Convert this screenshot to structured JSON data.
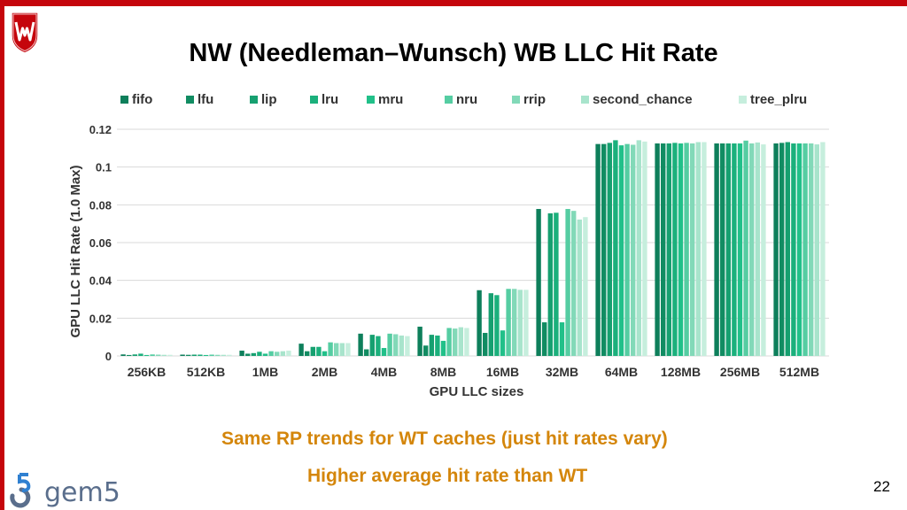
{
  "slide": {
    "title": "NW (Needleman–Wunsch) WB LLC Hit Rate",
    "note1": "Same RP trends for WT caches (just hit rates vary)",
    "note2": "Higher average hit rate than WT",
    "page_number": "22",
    "logo_text": "gem5"
  },
  "colors": {
    "accent": "#c5050c",
    "note": "#d4860b"
  },
  "chart_data": {
    "type": "bar",
    "title": "NW (Needleman–Wunsch) WB LLC Hit Rate",
    "xlabel": "GPU LLC sizes",
    "ylabel": "GPU LLC Hit Rate (1.0 Max)",
    "ylim": [
      0,
      0.12
    ],
    "yticks": [
      "0",
      "0.02",
      "0.04",
      "0.06",
      "0.08",
      "0.1",
      "0.12"
    ],
    "legend_position": "top",
    "grid": true,
    "categories": [
      "256KB",
      "512KB",
      "1MB",
      "2MB",
      "4MB",
      "8MB",
      "16MB",
      "32MB",
      "64MB",
      "128MB",
      "256MB",
      "512MB"
    ],
    "series": [
      {
        "name": "fifo",
        "color": "#0e7f5b",
        "values": [
          0.0008,
          0.0007,
          0.0028,
          0.0065,
          0.0118,
          0.0155,
          0.0348,
          0.0778,
          0.1122,
          0.1125,
          0.1125,
          0.1125
        ]
      },
      {
        "name": "lfu",
        "color": "#118c62",
        "values": [
          0.0005,
          0.0006,
          0.0012,
          0.0025,
          0.0035,
          0.0055,
          0.0122,
          0.0178,
          0.1122,
          0.1125,
          0.1125,
          0.1128
        ]
      },
      {
        "name": "lip",
        "color": "#16a070",
        "values": [
          0.0008,
          0.0007,
          0.0015,
          0.0048,
          0.0112,
          0.0112,
          0.0332,
          0.0755,
          0.1128,
          0.1125,
          0.1125,
          0.1132
        ]
      },
      {
        "name": "lru",
        "color": "#1bb07c",
        "values": [
          0.0012,
          0.0007,
          0.0022,
          0.0048,
          0.0105,
          0.0108,
          0.0322,
          0.0758,
          0.1142,
          0.1128,
          0.1125,
          0.1125
        ]
      },
      {
        "name": "mru",
        "color": "#21c089",
        "values": [
          0.0005,
          0.0005,
          0.0012,
          0.0025,
          0.0042,
          0.008,
          0.0135,
          0.0178,
          0.1115,
          0.1125,
          0.1125,
          0.1125
        ]
      },
      {
        "name": "nru",
        "color": "#55cda2",
        "values": [
          0.0008,
          0.0007,
          0.0025,
          0.0072,
          0.0118,
          0.0148,
          0.0355,
          0.0778,
          0.1122,
          0.1128,
          0.114,
          0.1125
        ]
      },
      {
        "name": "rrip",
        "color": "#82d9b8",
        "values": [
          0.0007,
          0.0006,
          0.0022,
          0.0068,
          0.0115,
          0.0145,
          0.0355,
          0.0768,
          0.1118,
          0.1125,
          0.1125,
          0.1125
        ]
      },
      {
        "name": "second_chance",
        "color": "#a8e4cc",
        "values": [
          0.0006,
          0.0006,
          0.0025,
          0.0068,
          0.0108,
          0.0152,
          0.035,
          0.0722,
          0.1142,
          0.1132,
          0.113,
          0.112
        ]
      },
      {
        "name": "tree_plru",
        "color": "#c6eedd",
        "values": [
          0.0006,
          0.0006,
          0.0028,
          0.0068,
          0.0105,
          0.0148,
          0.035,
          0.0735,
          0.1135,
          0.1132,
          0.112,
          0.1132
        ]
      }
    ]
  }
}
